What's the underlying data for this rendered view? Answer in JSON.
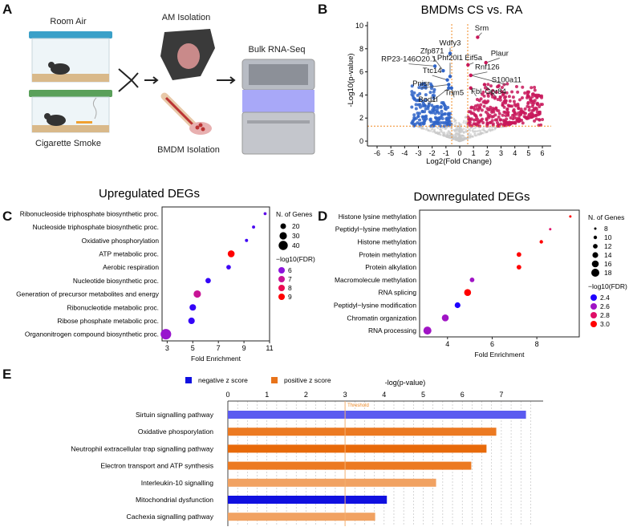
{
  "panels": {
    "a": "A",
    "b": "B",
    "c": "C",
    "d": "D",
    "e": "E"
  },
  "panel_a": {
    "room_air": "Room Air",
    "cigarette_smoke": "Cigarette Smoke",
    "am_isolation": "AM Isolation",
    "bmdm_isolation": "BMDM Isolation",
    "bulk_rnaseq": "Bulk RNA-Seq"
  },
  "chart_data": [
    {
      "id": "volcano",
      "type": "scatter",
      "title": "BMDMs CS vs. RA",
      "xlabel": "Log2(Fold Change)",
      "ylabel": "-Log10(p-value)",
      "xlim": [
        -6.5,
        6.5
      ],
      "ylim": [
        -0.3,
        10.3
      ],
      "xticks": [
        "-6",
        "-5",
        "-4",
        "-3",
        "-2",
        "-1",
        "0",
        "1",
        "2",
        "3",
        "4",
        "5",
        "6"
      ],
      "yticks": [
        "0",
        "2",
        "4",
        "6",
        "8",
        "10"
      ],
      "fc_threshold": 0.58,
      "p_threshold": 1.3,
      "colors": {
        "down": "#2f64c8",
        "up": "#c8185a",
        "ns": "#c8c8c8",
        "threshold": "#f08a24"
      },
      "labeled_genes": [
        {
          "gene": "Srm",
          "x": 1.3,
          "y": 9.0,
          "lx": 1.6,
          "ly": 9.6
        },
        {
          "gene": "Wdfy3",
          "x": -0.7,
          "y": 7.6,
          "lx": -0.7,
          "ly": 8.3
        },
        {
          "gene": "Zfp871",
          "x": -1.2,
          "y": 6.1,
          "lx": -2.0,
          "ly": 7.6
        },
        {
          "gene": "RP23-146O20.1",
          "x": -1.8,
          "y": 6.5,
          "lx": -3.7,
          "ly": 6.9
        },
        {
          "gene": "Phf20l1",
          "x": -0.7,
          "y": 5.6,
          "lx": -0.7,
          "ly": 7.0
        },
        {
          "gene": "Eif5a",
          "x": 0.6,
          "y": 6.6,
          "lx": 1.0,
          "ly": 7.0
        },
        {
          "gene": "Plaur",
          "x": 1.9,
          "y": 6.8,
          "lx": 2.9,
          "ly": 7.4
        },
        {
          "gene": "Rnf126",
          "x": 0.8,
          "y": 5.7,
          "lx": 2.0,
          "ly": 6.2
        },
        {
          "gene": "Ttc14",
          "x": -0.9,
          "y": 5.3,
          "lx": -2.0,
          "ly": 5.9
        },
        {
          "gene": "S100a11",
          "x": 0.8,
          "y": 5.7,
          "lx": 3.4,
          "ly": 5.1
        },
        {
          "gene": "Pnisr",
          "x": -0.8,
          "y": 4.9,
          "lx": -2.8,
          "ly": 4.8
        },
        {
          "gene": "Trim5",
          "x": -0.6,
          "y": 4.6,
          "lx": -0.4,
          "ly": 4.0
        },
        {
          "gene": "Bod1l",
          "x": -0.8,
          "y": 4.6,
          "lx": -2.3,
          "ly": 3.4
        },
        {
          "gene": "Fbl",
          "x": 0.8,
          "y": 4.6,
          "lx": 1.2,
          "ly": 4.1
        },
        {
          "gene": "Gpr84",
          "x": 1.8,
          "y": 4.9,
          "lx": 2.6,
          "ly": 4.1
        }
      ]
    },
    {
      "id": "upregulated",
      "type": "scatter",
      "title": "Upregulated DEGs",
      "xlabel": "Fold Enrichment",
      "xlim": [
        2.6,
        11
      ],
      "xticks": [
        3,
        5,
        7,
        9,
        11
      ],
      "size_legend_title": "N. of Genes",
      "size_legend": [
        20,
        30,
        40
      ],
      "color_legend_title": "−log10(FDR)",
      "color_legend": [
        6,
        7,
        8,
        9
      ],
      "color_range": [
        5,
        9
      ],
      "terms": [
        {
          "term": "Ribonucleoside triphosphate biosynthetic proc.",
          "fold": 10.65,
          "genes": 5,
          "fdr": 5.6
        },
        {
          "term": "Nucleoside triphosphate biosynthetic proc.",
          "fold": 9.75,
          "genes": 6,
          "fdr": 5.4
        },
        {
          "term": "Oxidative phosphorylation",
          "fold": 9.2,
          "genes": 6,
          "fdr": 5.3
        },
        {
          "term": "ATP metabolic proc.",
          "fold": 8.0,
          "genes": 27,
          "fdr": 9.0
        },
        {
          "term": "Aerobic respiration",
          "fold": 7.8,
          "genes": 14,
          "fdr": 5.3
        },
        {
          "term": "Nucleotide biosynthetic proc.",
          "fold": 6.2,
          "genes": 19,
          "fdr": 5.2
        },
        {
          "term": "Generation of precursor metabolites and energy",
          "fold": 5.35,
          "genes": 30,
          "fdr": 7.0
        },
        {
          "term": "Ribonucleotide metabolic proc.",
          "fold": 5.0,
          "genes": 25,
          "fdr": 5.2
        },
        {
          "term": "Ribose phosphate metabolic proc.",
          "fold": 4.9,
          "genes": 25,
          "fdr": 5.2
        },
        {
          "term": "Organonitrogen compound biosynthetic proc.",
          "fold": 2.9,
          "genes": 48,
          "fdr": 6.2
        }
      ]
    },
    {
      "id": "downregulated",
      "type": "scatter",
      "title": "Downregulated DEGs",
      "xlabel": "Fold Enrichment",
      "xlim": [
        2.75,
        9.9
      ],
      "xticks": [
        4,
        6,
        8
      ],
      "size_legend_title": "N. of Genes",
      "size_legend": [
        8,
        10,
        12,
        14,
        16,
        18
      ],
      "color_legend_title": "−log10(FDR)",
      "color_legend": [
        2.4,
        2.6,
        2.8,
        3.0
      ],
      "color_labels": [
        "2.4",
        "2.6",
        "2.8",
        "3.0"
      ],
      "color_range": [
        2.4,
        3.0
      ],
      "terms": [
        {
          "term": "Histone lysine methylation",
          "fold": 9.5,
          "genes": 8,
          "fdr": 3.0
        },
        {
          "term": "Peptidyl−lysine methylation",
          "fold": 8.6,
          "genes": 8,
          "fdr": 2.8
        },
        {
          "term": "Histone methylation",
          "fold": 8.2,
          "genes": 10,
          "fdr": 3.0
        },
        {
          "term": "Protein methylation",
          "fold": 7.2,
          "genes": 12,
          "fdr": 3.0
        },
        {
          "term": "Protein alkylation",
          "fold": 7.2,
          "genes": 12,
          "fdr": 3.0
        },
        {
          "term": "Macromolecule methylation",
          "fold": 5.1,
          "genes": 12,
          "fdr": 2.6
        },
        {
          "term": "RNA splicing",
          "fold": 4.9,
          "genes": 16,
          "fdr": 3.0
        },
        {
          "term": "Peptidyl−lysine modification",
          "fold": 4.45,
          "genes": 14,
          "fdr": 2.4
        },
        {
          "term": "Chromatin organization",
          "fold": 3.9,
          "genes": 16,
          "fdr": 2.6
        },
        {
          "term": "RNA processing",
          "fold": 3.1,
          "genes": 18,
          "fdr": 2.6
        }
      ]
    },
    {
      "id": "ipa",
      "type": "bar",
      "orientation": "horizontal",
      "xlabel": "-log(p-value)",
      "xlim": [
        0,
        8
      ],
      "xticks": [
        0,
        1,
        2,
        3,
        4,
        5,
        6,
        7
      ],
      "threshold": 3,
      "threshold_label": "Threshold",
      "legend": [
        {
          "label": "negative z score",
          "color": "#1010e0"
        },
        {
          "label": "positive z score",
          "color": "#e8731a"
        }
      ],
      "categories": [
        "Sirtuin signalling pathway",
        "Oxidative phosporylation",
        "Neutrophil extracellular trap signalling pathway",
        "Electron transport and ATP synthesis",
        "Interleukin-10 signalling",
        "Mitochondrial dysfunction",
        "Cachexia signalling pathway"
      ],
      "values": [
        7.63,
        6.87,
        6.62,
        6.23,
        5.33,
        4.07,
        3.77
      ],
      "colors": [
        "#5b5bf0",
        "#ec7a22",
        "#e86a0a",
        "#ec7a22",
        "#f1a262",
        "#1010e0",
        "#f1a262"
      ]
    }
  ]
}
